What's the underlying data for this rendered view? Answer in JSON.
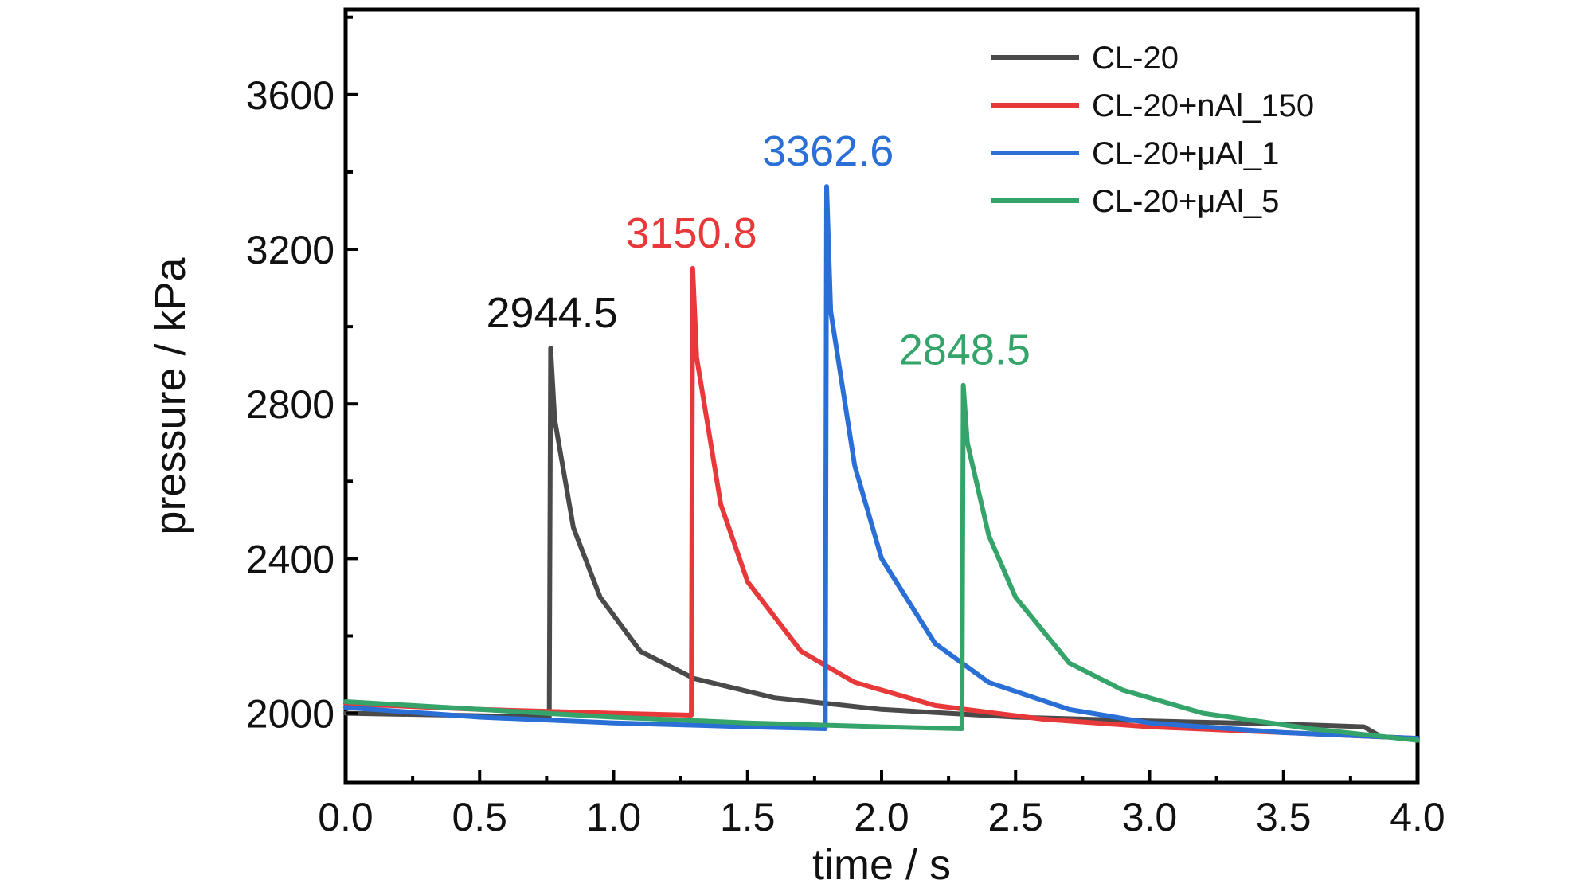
{
  "chart_data": {
    "type": "line",
    "xlabel": "time / s",
    "ylabel": "pressure / kPa",
    "xlim": [
      0.0,
      4.0
    ],
    "ylim": [
      1820,
      3820
    ],
    "xticks": [
      0.0,
      0.5,
      1.0,
      1.5,
      2.0,
      2.5,
      3.0,
      3.5,
      4.0
    ],
    "xtick_labels": [
      "0.0",
      "0.5",
      "1.0",
      "1.5",
      "2.0",
      "2.5",
      "3.0",
      "3.5",
      "4.0"
    ],
    "yticks": [
      2000,
      2400,
      2800,
      3200,
      3600
    ],
    "ytick_labels": [
      "2000",
      "2400",
      "2800",
      "3200",
      "3600"
    ],
    "grid": false,
    "legend_position": "top-right",
    "series": [
      {
        "name": "CL-20",
        "color": "#4a4a4a",
        "x": [
          0.0,
          0.4,
          0.76,
          0.765,
          0.78,
          0.85,
          0.95,
          1.1,
          1.3,
          1.6,
          2.0,
          2.5,
          3.0,
          3.5,
          3.8,
          3.85
        ],
        "y": [
          2000,
          1995,
          1990,
          2944.5,
          2760,
          2480,
          2300,
          2160,
          2090,
          2040,
          2010,
          1990,
          1980,
          1972,
          1965,
          1945
        ]
      },
      {
        "name": "CL-20+nAl_150",
        "color": "#e8393a",
        "x": [
          0.0,
          0.5,
          1.0,
          1.29,
          1.295,
          1.31,
          1.4,
          1.5,
          1.7,
          1.9,
          2.2,
          2.6,
          3.0,
          3.5,
          4.0
        ],
        "y": [
          2025,
          2010,
          2000,
          1995,
          3150.8,
          2920,
          2540,
          2340,
          2160,
          2080,
          2020,
          1985,
          1965,
          1950,
          1935
        ]
      },
      {
        "name": "CL-20+μAl_1",
        "color": "#2a6fd6",
        "x": [
          0.0,
          0.5,
          1.0,
          1.5,
          1.79,
          1.795,
          1.81,
          1.9,
          2.0,
          2.2,
          2.4,
          2.7,
          3.0,
          3.5,
          4.0
        ],
        "y": [
          2015,
          1990,
          1975,
          1965,
          1960,
          3362.6,
          3040,
          2640,
          2400,
          2180,
          2080,
          2010,
          1975,
          1950,
          1935
        ]
      },
      {
        "name": "CL-20+μAl_5",
        "color": "#35a46a",
        "x": [
          0.0,
          0.5,
          1.0,
          1.5,
          2.0,
          2.3,
          2.305,
          2.32,
          2.4,
          2.5,
          2.7,
          2.9,
          3.2,
          3.6,
          4.0
        ],
        "y": [
          2030,
          2010,
          1990,
          1975,
          1965,
          1960,
          2848.5,
          2700,
          2460,
          2300,
          2130,
          2060,
          2000,
          1960,
          1930
        ]
      }
    ],
    "annotations": [
      {
        "text": "2944.5",
        "x": 0.77,
        "y": 2944.5,
        "color": "#111111"
      },
      {
        "text": "3150.8",
        "x": 1.29,
        "y": 3150.8,
        "color": "#e8393a"
      },
      {
        "text": "3362.6",
        "x": 1.8,
        "y": 3362.6,
        "color": "#2a6fd6"
      },
      {
        "text": "2848.5",
        "x": 2.31,
        "y": 2848.5,
        "color": "#35a46a"
      }
    ]
  }
}
